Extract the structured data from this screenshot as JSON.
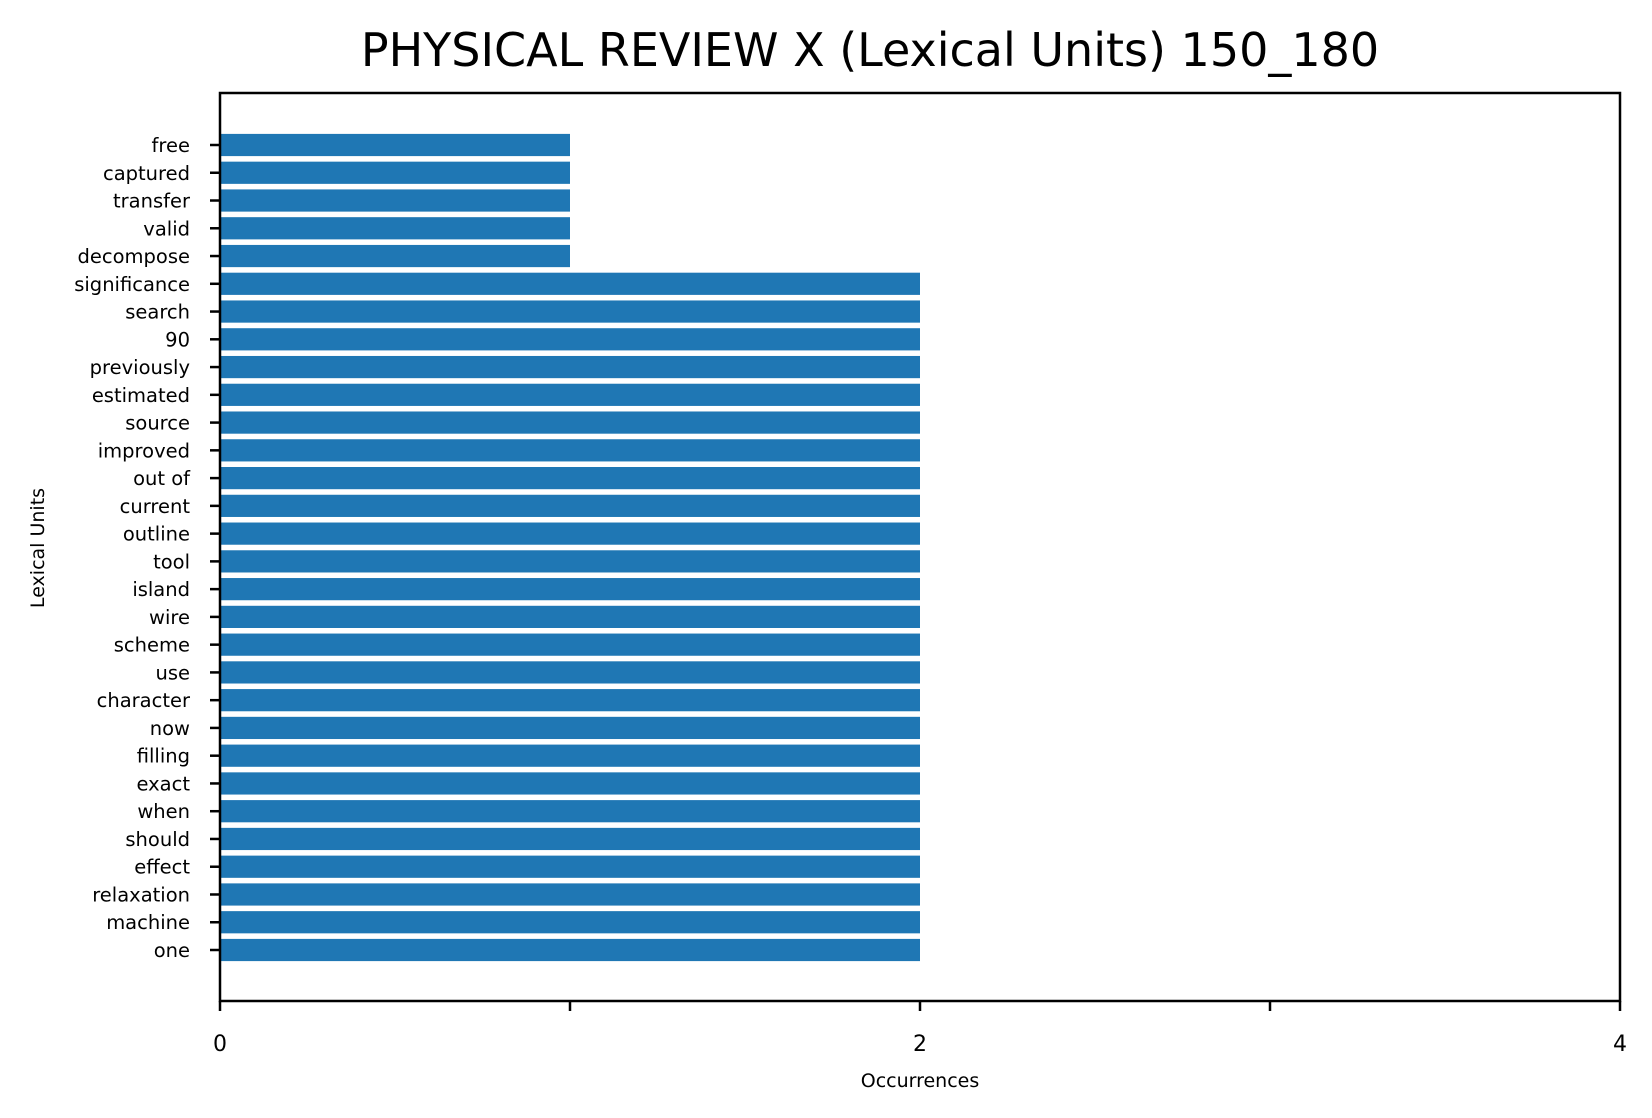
{
  "chart_data": {
    "type": "bar",
    "orientation": "horizontal",
    "title": "PHYSICAL REVIEW X (Lexical Units) 150_180",
    "xlabel": "Occurrences",
    "ylabel": "Lexical Units",
    "xlim": [
      0,
      4
    ],
    "xticks": [
      0,
      1,
      2,
      3,
      4
    ],
    "xtick_labels": [
      "0",
      "",
      "2",
      "",
      "4"
    ],
    "bar_color": "#1f77b4",
    "grid": false,
    "categories": [
      "free",
      "captured",
      "transfer",
      "valid",
      "decompose",
      "significance",
      "search",
      "90",
      "previously",
      "estimated",
      "source",
      "improved",
      "out of",
      "current",
      "outline",
      "tool",
      "island",
      "wire",
      "scheme",
      "use",
      "character",
      "now",
      "filling",
      "exact",
      "when",
      "should",
      "effect",
      "relaxation",
      "machine",
      "one"
    ],
    "values": [
      1,
      1,
      1,
      1,
      1,
      2,
      2,
      2,
      2,
      2,
      2,
      2,
      2,
      2,
      2,
      2,
      2,
      2,
      2,
      2,
      2,
      2,
      2,
      2,
      2,
      2,
      2,
      2,
      2,
      2
    ]
  }
}
